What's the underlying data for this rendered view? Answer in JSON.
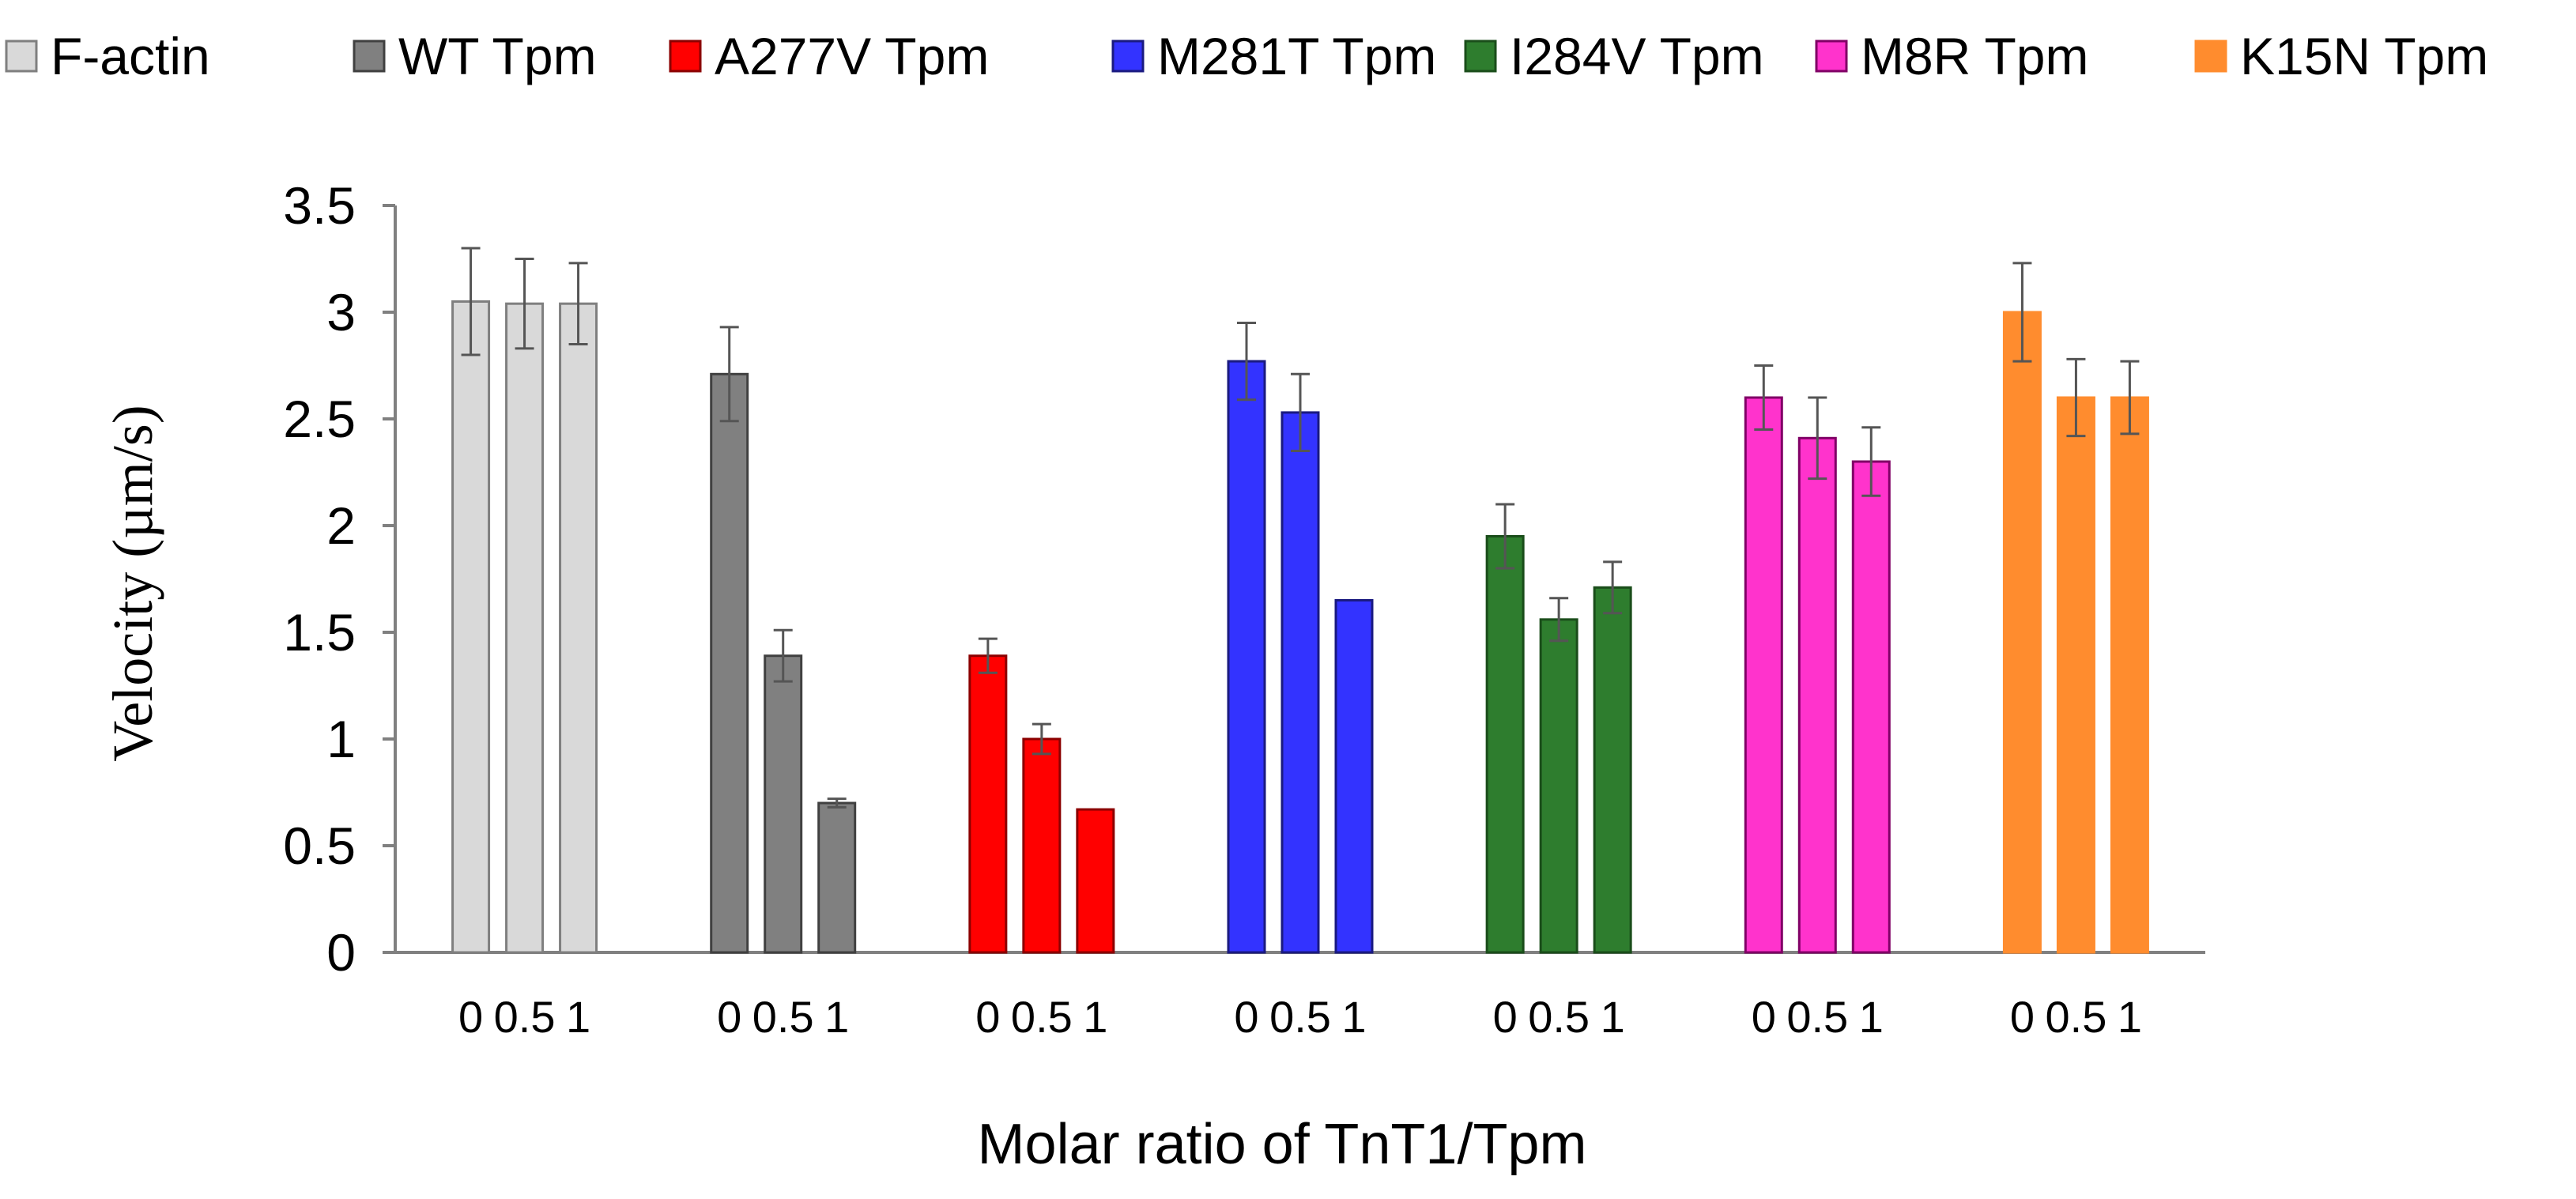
{
  "chart_data": {
    "type": "bar",
    "title": "",
    "xlabel": "Molar ratio of TnT1/Tpm",
    "ylabel": "Velocity (µm/s)",
    "ylim": [
      0,
      3.5
    ],
    "yticks": [
      "0",
      "0.5",
      "1",
      "1.5",
      "2",
      "2.5",
      "3",
      "3.5"
    ],
    "grid": false,
    "legend": "top",
    "groups": [
      {
        "name": "F-actin",
        "color": "#d9d9d9",
        "border": "#7f7f7f",
        "tick_labels": [
          "0",
          "0.5",
          "1"
        ],
        "values": [
          3.05,
          3.04,
          3.04
        ],
        "errors": [
          0.25,
          0.21,
          0.19
        ]
      },
      {
        "name": "WT Tpm",
        "color": "#808080",
        "border": "#404040",
        "tick_labels": [
          "0",
          "0.5",
          "1"
        ],
        "values": [
          2.71,
          1.39,
          0.7
        ],
        "errors": [
          0.22,
          0.12,
          0.02
        ]
      },
      {
        "name": "A277V Tpm",
        "color": "#ff0000",
        "border": "#8b0000",
        "tick_labels": [
          "0",
          "0.5",
          "1"
        ],
        "values": [
          1.39,
          1.0,
          0.67
        ],
        "errors": [
          0.08,
          0.07,
          0.0
        ]
      },
      {
        "name": "M281T Tpm",
        "color": "#3333ff",
        "border": "#1a1a80",
        "tick_labels": [
          "0",
          "0.5",
          "1"
        ],
        "values": [
          2.77,
          2.53,
          1.65
        ],
        "errors": [
          0.18,
          0.18,
          0.0
        ]
      },
      {
        "name": "I284V Tpm",
        "color": "#2e7d2e",
        "border": "#1a4d1a",
        "tick_labels": [
          "0",
          "0.5",
          "1"
        ],
        "values": [
          1.95,
          1.56,
          1.71
        ],
        "errors": [
          0.15,
          0.1,
          0.12
        ]
      },
      {
        "name": "M8R Tpm",
        "color": "#ff33cc",
        "border": "#800066",
        "tick_labels": [
          "0",
          "0.5",
          "1"
        ],
        "values": [
          2.6,
          2.41,
          2.3
        ],
        "errors": [
          0.15,
          0.19,
          0.16
        ]
      },
      {
        "name": "K15N Tpm",
        "color": "#ff8c2e",
        "border": "#ff8c2e",
        "tick_labels": [
          "0",
          "0.5",
          "1"
        ],
        "values": [
          3.0,
          2.6,
          2.6
        ],
        "errors": [
          0.23,
          0.18,
          0.17
        ]
      }
    ]
  }
}
